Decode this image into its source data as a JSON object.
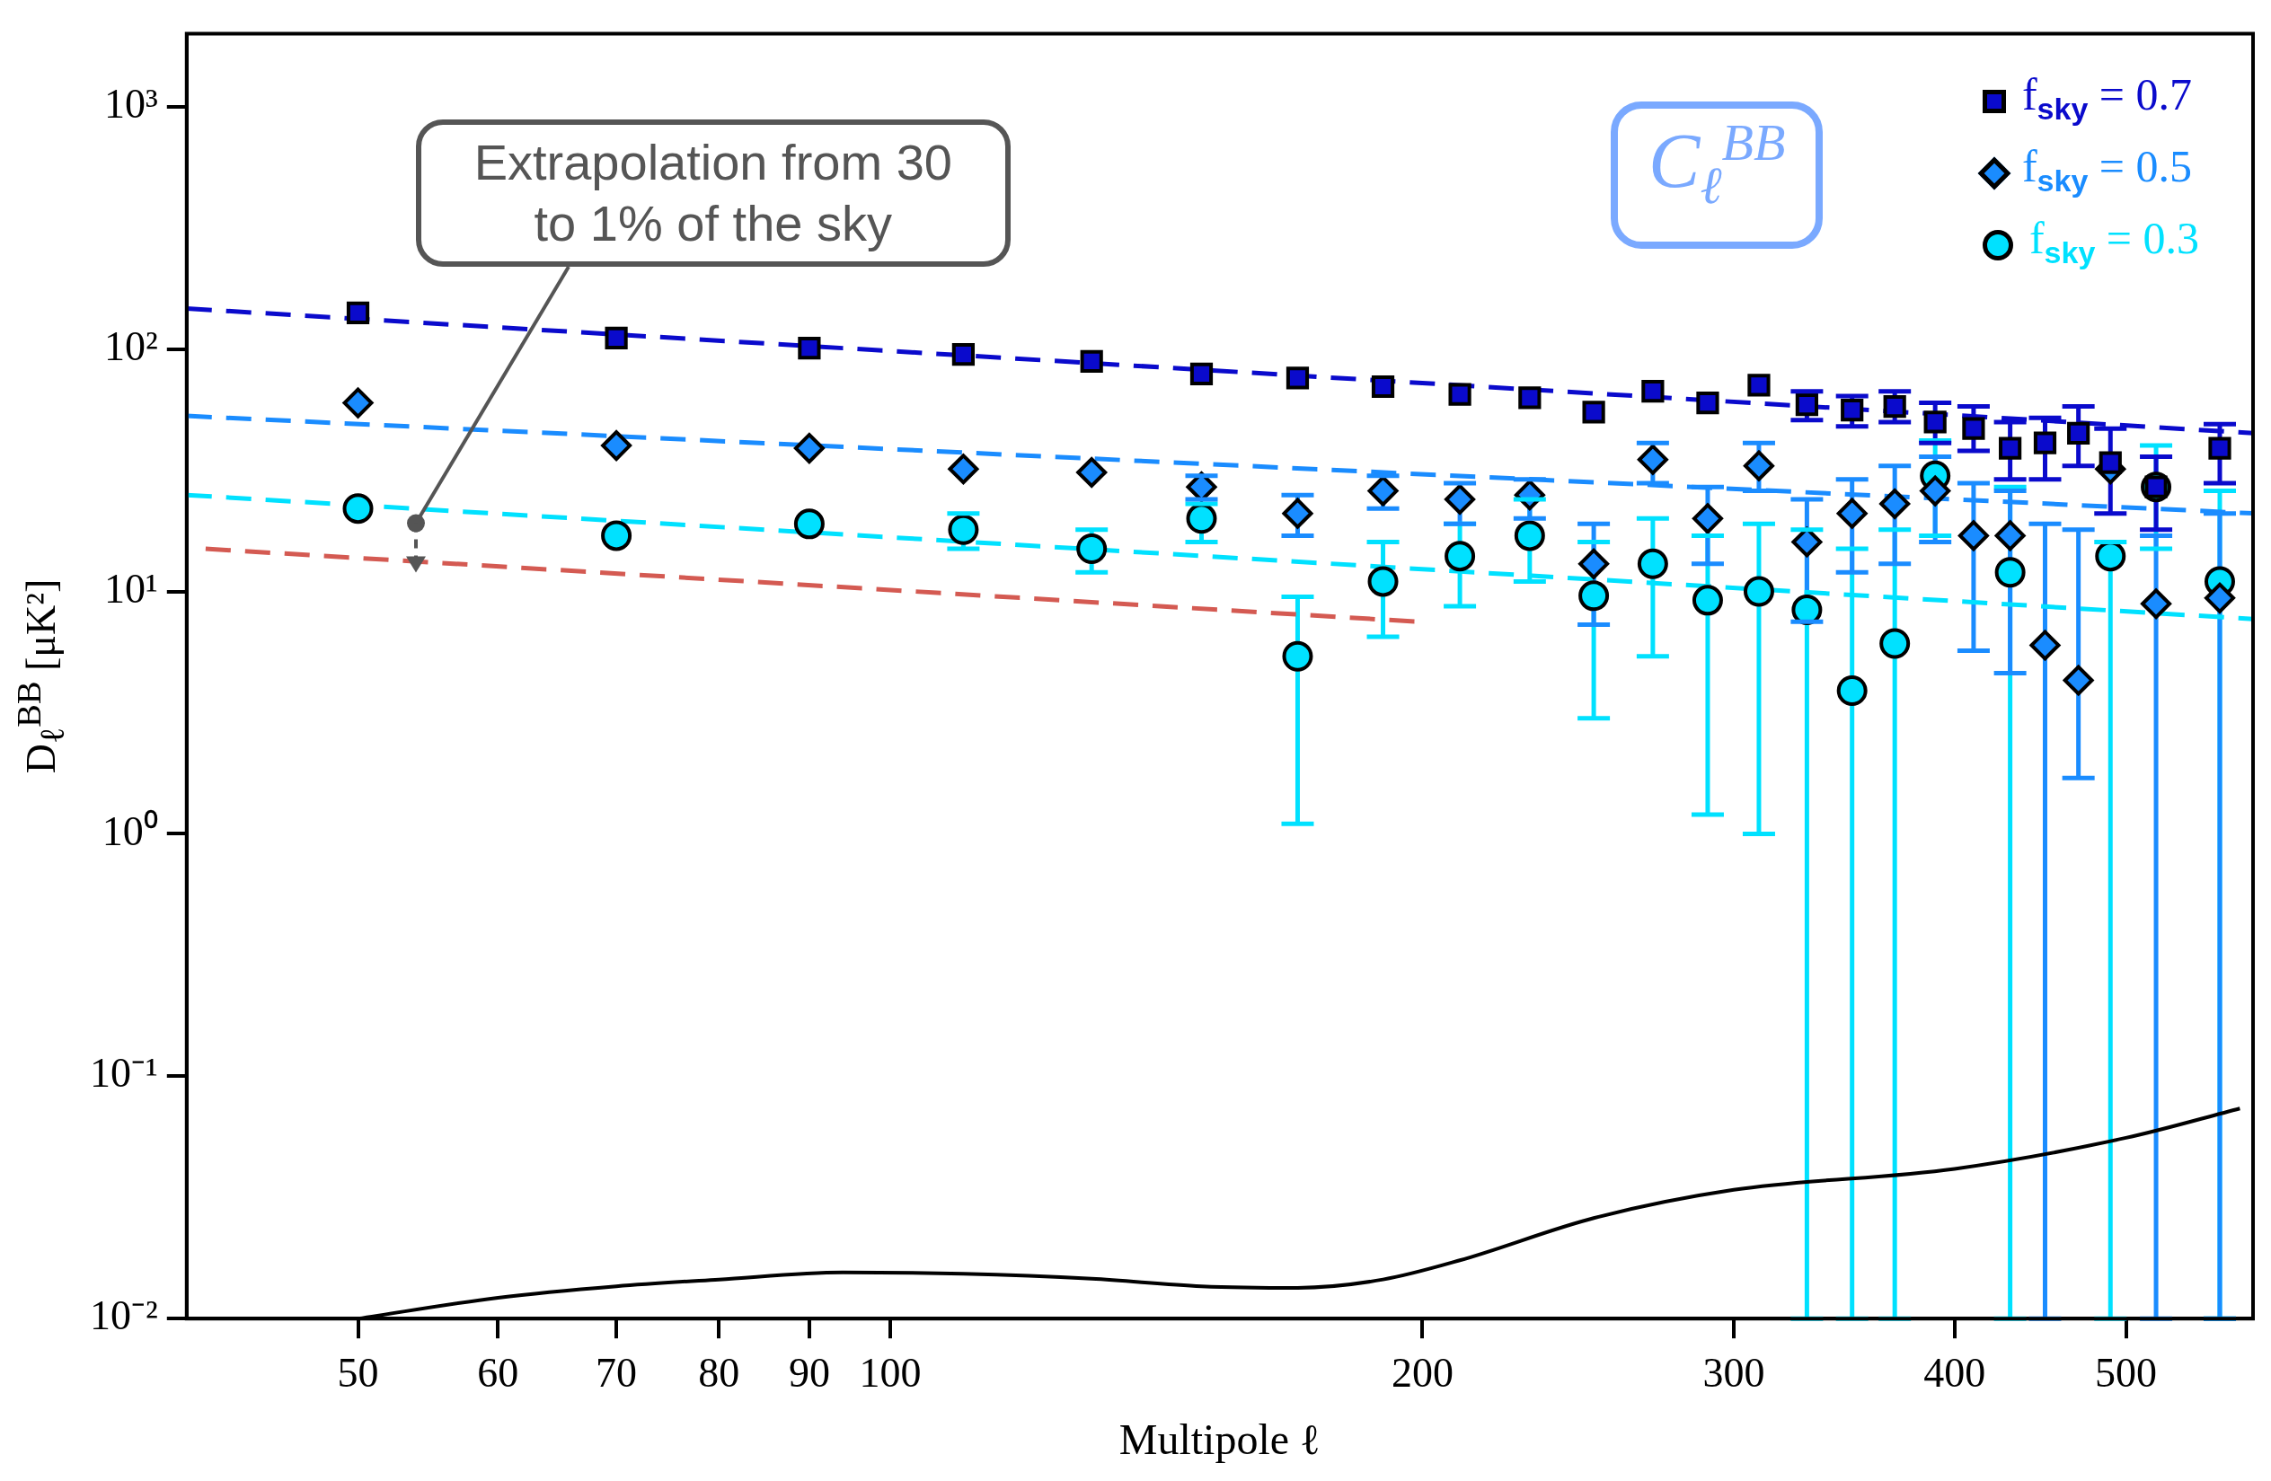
{
  "chart_data": {
    "type": "scatter",
    "xlabel": "Multipole ℓ",
    "ylabel": "D$_{ℓ}$$^{BB}$ [μK²]",
    "log": "xy",
    "xlim": [
      40,
      590
    ],
    "ylim": [
      0.01,
      2000
    ],
    "xticks": [
      50,
      60,
      70,
      80,
      90,
      100,
      200,
      300,
      400,
      500
    ],
    "yticks": [
      {
        "value": 0.01,
        "label": "10⁻²"
      },
      {
        "value": 0.1,
        "label": "10⁻¹"
      },
      {
        "value": 1,
        "label": "10⁰"
      },
      {
        "value": 10,
        "label": "10¹"
      },
      {
        "value": 100,
        "label": "10²"
      },
      {
        "value": 1000,
        "label": "10³"
      }
    ],
    "grid": false,
    "legend": "top right",
    "series": [
      {
        "name": "f$_{sky}$ = 0.7",
        "color": "#0a0acc",
        "marker": "square",
        "x": [
          50,
          70,
          90,
          110,
          130,
          150,
          170,
          190,
          210,
          230,
          250,
          270,
          290,
          310,
          330,
          350,
          370,
          390,
          410,
          430,
          450,
          470,
          490,
          520,
          565
        ],
        "values": [
          141,
          111,
          101,
          95,
          89,
          79,
          76,
          70,
          65,
          63,
          55,
          67,
          60,
          71,
          59,
          56,
          58,
          50,
          47,
          39,
          41,
          45,
          34,
          27,
          39
        ],
        "errors": [
          null,
          null,
          null,
          null,
          null,
          null,
          null,
          null,
          null,
          null,
          null,
          null,
          null,
          null,
          [
            51,
            67
          ],
          [
            48,
            64
          ],
          [
            50,
            67
          ],
          [
            41,
            60
          ],
          [
            38,
            58
          ],
          [
            29,
            50
          ],
          [
            29,
            52
          ],
          [
            33,
            58
          ],
          [
            21,
            47
          ],
          [
            18,
            36
          ],
          [
            28,
            49
          ]
        ]
      },
      {
        "name": "f$_{sky}$ = 0.5",
        "color": "#1a8cff",
        "marker": "diamond",
        "x": [
          50,
          70,
          90,
          110,
          130,
          150,
          170,
          190,
          210,
          230,
          250,
          270,
          290,
          310,
          330,
          350,
          370,
          390,
          410,
          430,
          450,
          470,
          490,
          520,
          565
        ],
        "values": [
          60,
          40,
          39,
          32,
          31,
          27,
          21,
          26,
          24,
          25,
          13,
          35,
          20,
          33,
          16,
          21,
          23,
          26,
          17,
          17,
          6,
          4.3,
          32,
          8.9,
          9.4
        ],
        "errors": [
          null,
          null,
          null,
          null,
          null,
          [
            24,
            30
          ],
          [
            17,
            25
          ],
          [
            22,
            30
          ],
          [
            19,
            28
          ],
          [
            20,
            29
          ],
          [
            7.3,
            19
          ],
          [
            28,
            41
          ],
          [
            13,
            27
          ],
          [
            26,
            41
          ],
          [
            7.5,
            24
          ],
          [
            12,
            29
          ],
          [
            13,
            33
          ],
          [
            16,
            36
          ],
          [
            5.7,
            28
          ],
          [
            4.6,
            26
          ],
          [
            0.01,
            19
          ],
          [
            1.7,
            18
          ],
          null,
          [
            0.01,
            17
          ],
          [
            0.01,
            21
          ]
        ]
      },
      {
        "name": "f$_{sky}$ = 0.3",
        "color": "#00e1ff",
        "marker": "circle",
        "x": [
          50,
          70,
          90,
          110,
          130,
          150,
          170,
          190,
          210,
          230,
          250,
          270,
          290,
          310,
          330,
          350,
          370,
          390,
          430,
          490,
          520,
          565
        ],
        "values": [
          22,
          17,
          19,
          18,
          15,
          20,
          5.4,
          11,
          14,
          17,
          9.6,
          13,
          9.2,
          10,
          8.4,
          3.9,
          6.1,
          30,
          12,
          14,
          27,
          11
        ],
        "errors": [
          null,
          null,
          null,
          [
            15,
            21
          ],
          [
            12,
            18
          ],
          [
            16,
            23
          ],
          [
            1.1,
            9.5
          ],
          [
            6.5,
            16
          ],
          [
            8.7,
            19
          ],
          [
            11,
            24
          ],
          [
            3,
            16
          ],
          [
            5.4,
            20
          ],
          [
            1.2,
            17
          ],
          [
            1,
            19
          ],
          [
            0.01,
            18
          ],
          [
            0.01,
            15
          ],
          [
            0.01,
            18
          ],
          [
            17,
            42
          ],
          [
            0.01,
            27
          ],
          [
            0.01,
            16
          ],
          [
            15,
            40
          ],
          [
            0.01,
            26
          ]
        ]
      },
      {
        "type": "line",
        "line_style": "dashed",
        "color": "#0a0acc",
        "x": [
          40,
          590
        ],
        "values": [
          147,
          45
        ]
      },
      {
        "type": "line",
        "line_style": "dashed",
        "color": "#1a8cff",
        "x": [
          40,
          590
        ],
        "values": [
          53,
          21
        ]
      },
      {
        "type": "line",
        "line_style": "dashed",
        "color": "#00e1ff",
        "x": [
          40,
          590
        ],
        "values": [
          25,
          7.7
        ]
      },
      {
        "type": "line",
        "line_style": "dashed",
        "color": "#d45a52",
        "x": [
          41,
          199
        ],
        "values": [
          15,
          7.5
        ]
      },
      {
        "type": "line",
        "line_style": "solid",
        "color": "#000000",
        "x": [
          50,
          60,
          70,
          80,
          94,
          110,
          130,
          150,
          170,
          190,
          210,
          250,
          300,
          400,
          500,
          580
        ],
        "values": [
          0.01,
          0.0122,
          0.0136,
          0.0145,
          0.0155,
          0.0153,
          0.0146,
          0.0136,
          0.0134,
          0.0145,
          0.0174,
          0.026,
          0.034,
          0.0415,
          0.0557,
          0.0736
        ]
      }
    ],
    "annotations": [
      "C$_{ℓ}$$^{BB}$",
      "Extrapolation from 30 to 1% of the sky"
    ]
  }
}
